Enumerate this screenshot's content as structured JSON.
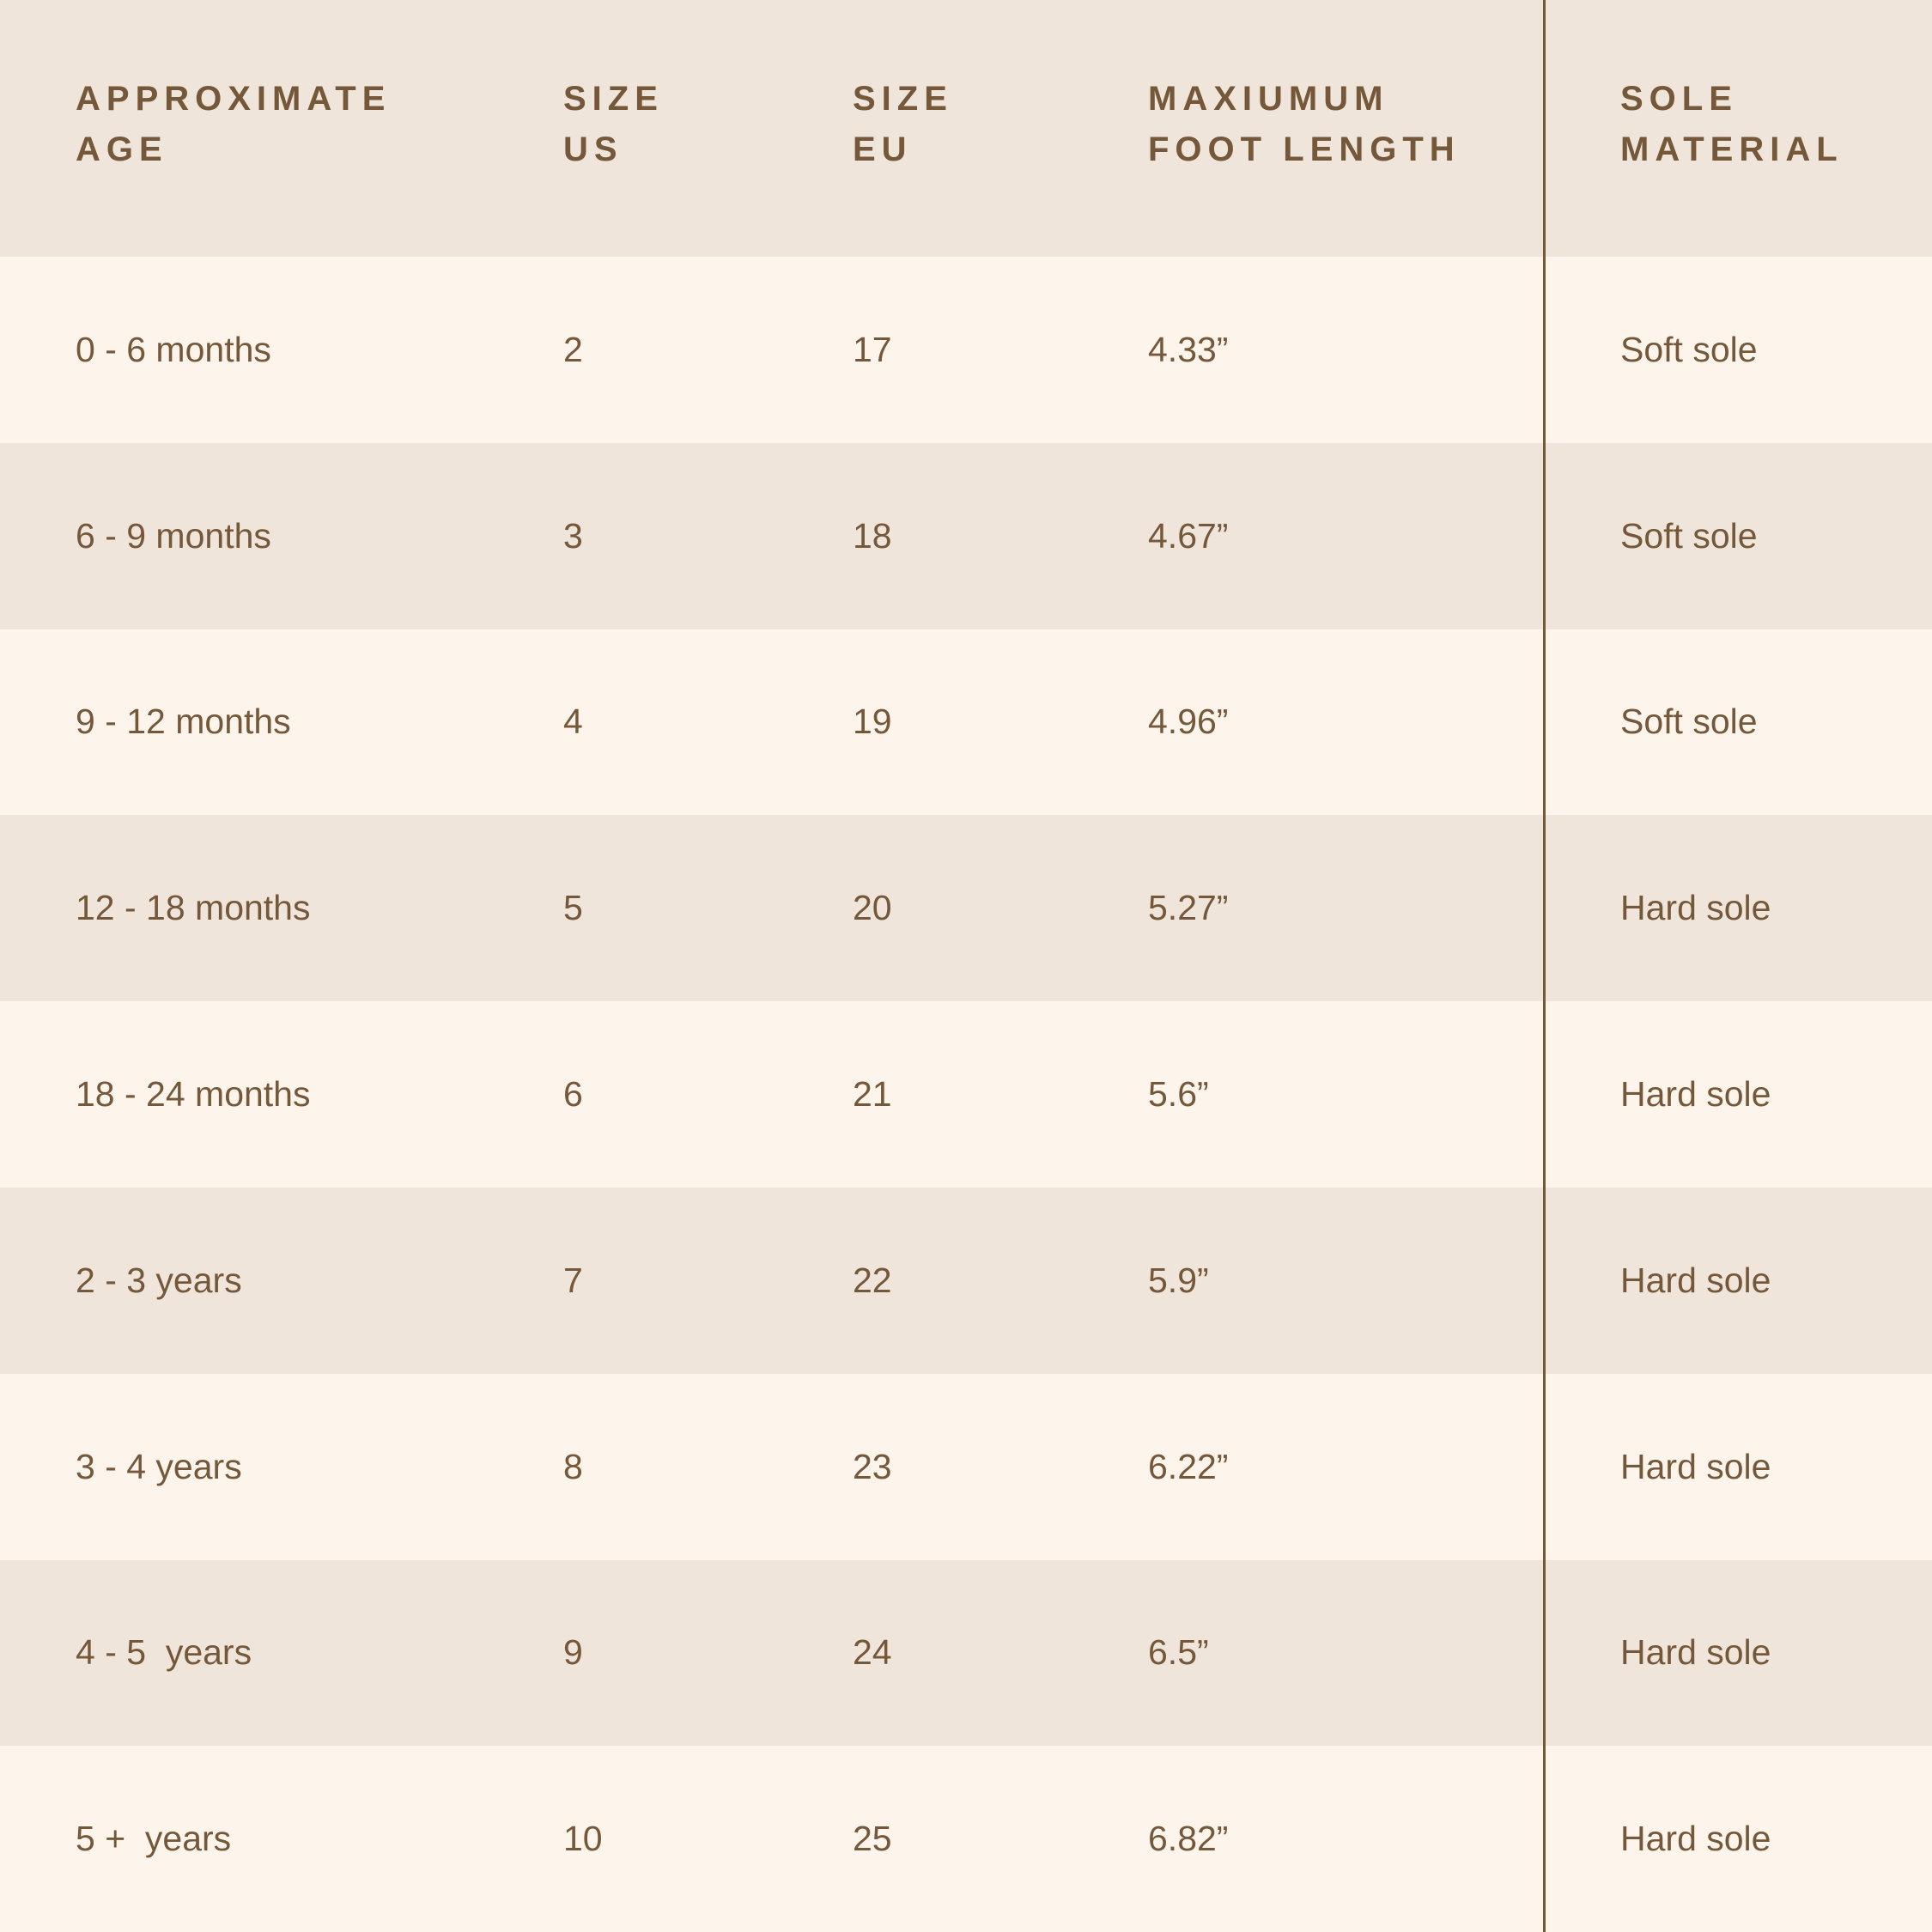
{
  "colors": {
    "header_bg": "#f0e5da",
    "row_light": "#fdf5ec",
    "row_alt": "#f0e5da",
    "text": "#75583a",
    "divider": "#75583a"
  },
  "headers": [
    {
      "line1": "APPROXIMATE",
      "line2": "AGE"
    },
    {
      "line1": "SIZE",
      "line2": "US"
    },
    {
      "line1": "SIZE",
      "line2": "EU"
    },
    {
      "line1": "MAXIUMUM",
      "line2": "FOOT LENGTH"
    },
    {
      "line1": "SOLE",
      "line2": "MATERIAL"
    }
  ],
  "rows": [
    [
      "0 - 6 months",
      "2",
      "17",
      "4.33”",
      "Soft sole"
    ],
    [
      "6 - 9 months",
      "3",
      "18",
      "4.67”",
      "Soft sole"
    ],
    [
      "9 - 12 months",
      "4",
      "19",
      "4.96”",
      "Soft sole"
    ],
    [
      "12 - 18 months",
      "5",
      "20",
      "5.27”",
      "Hard sole"
    ],
    [
      "18 - 24 months",
      "6",
      "21",
      "5.6”",
      "Hard sole"
    ],
    [
      "2 - 3 years",
      "7",
      "22",
      "5.9”",
      "Hard sole"
    ],
    [
      "3 - 4 years",
      "8",
      "23",
      "6.22”",
      "Hard sole"
    ],
    [
      "4 - 5  years",
      "9",
      "24",
      "6.5”",
      "Hard sole"
    ],
    [
      "5 +  years",
      "10",
      "25",
      "6.82”",
      "Hard sole"
    ]
  ]
}
